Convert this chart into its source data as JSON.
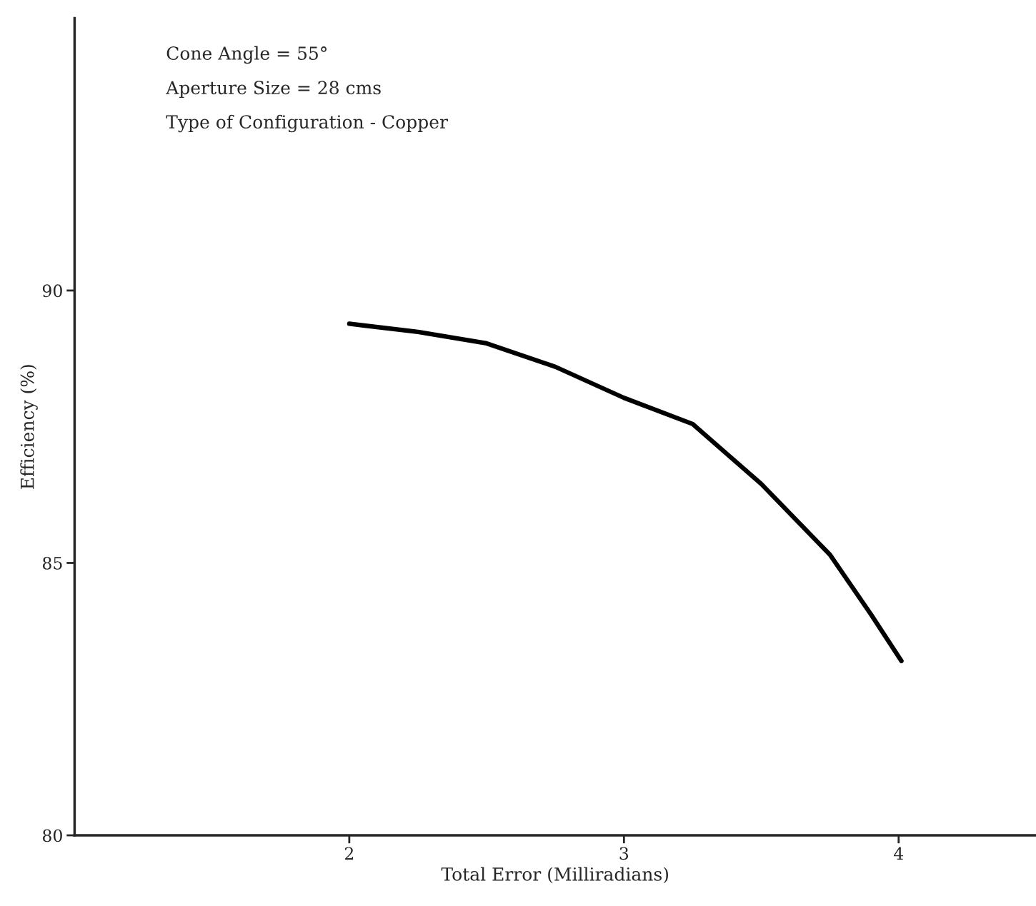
{
  "chart_data": {
    "type": "line",
    "xlabel": "Total Error (Milliradians)",
    "ylabel": "Efficiency (%)",
    "x": [
      2.0,
      2.25,
      2.5,
      2.75,
      3.0,
      3.25,
      3.5,
      3.75,
      3.9,
      4.01
    ],
    "series": [
      {
        "color": "#000000",
        "values": [
          89.39,
          89.24,
          89.03,
          88.6,
          88.03,
          87.55,
          86.45,
          85.15,
          84.05,
          83.2
        ]
      }
    ],
    "xlim": [
      1.0,
      4.5
    ],
    "ylim": [
      80,
      95
    ],
    "xticks": [
      2,
      3,
      4
    ],
    "yticks": [
      80,
      85,
      90
    ],
    "grid": false,
    "legend": false,
    "marker": "none",
    "line_style": "solid",
    "annotations": [
      "Cone Angle = 55°",
      "Aperture Size = 28 cms",
      "Type of Configuration - Copper"
    ]
  }
}
